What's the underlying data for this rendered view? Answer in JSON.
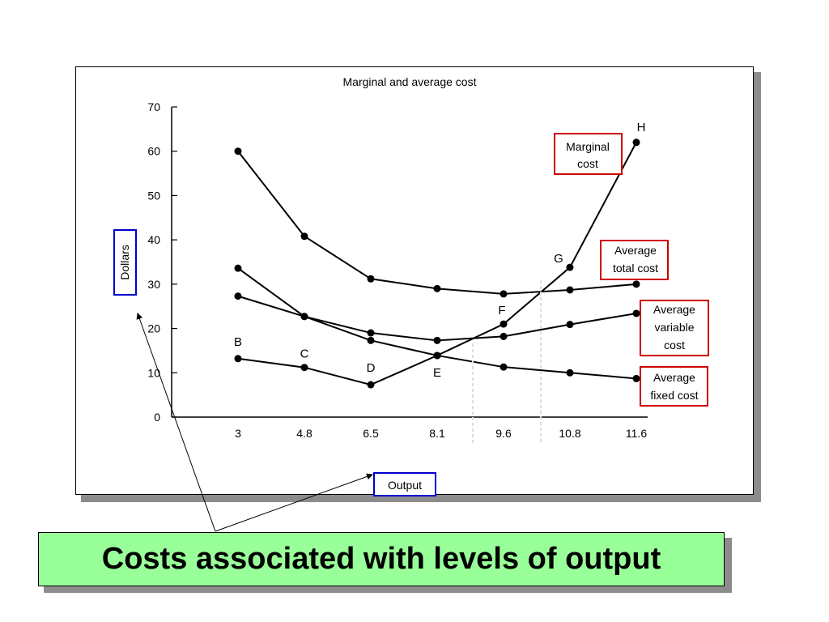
{
  "chart_data": {
    "type": "line",
    "title": "Marginal and average cost",
    "xlabel": "Output",
    "ylabel": "Dollars",
    "categories": [
      "3",
      "4.8",
      "6.5",
      "8.1",
      "9.6",
      "10.8",
      "11.6"
    ],
    "ylim": [
      0,
      70
    ],
    "yticks": [
      "0",
      "10",
      "20",
      "30",
      "40",
      "50",
      "60",
      "70"
    ],
    "grid": false,
    "series": [
      {
        "name": "Marginal cost",
        "values": [
          13.2,
          11.2,
          7.3,
          13.9,
          21.0,
          33.8,
          62.0
        ]
      },
      {
        "name": "Average total cost",
        "values": [
          60.0,
          40.8,
          31.2,
          29.0,
          27.8,
          28.7,
          30.0
        ]
      },
      {
        "name": "Average variable cost",
        "values": [
          27.3,
          22.7,
          19.0,
          17.3,
          18.2,
          20.9,
          23.4
        ]
      },
      {
        "name": "Average fixed cost",
        "values": [
          33.6,
          22.7,
          17.3,
          13.9,
          11.3,
          10.0,
          8.7
        ]
      }
    ],
    "point_labels": [
      "B",
      "C",
      "D",
      "E",
      "F",
      "G",
      "H"
    ],
    "legend_labels": [
      [
        "Marginal",
        "cost"
      ],
      [
        "Average",
        "total cost"
      ],
      [
        "Average",
        "variable",
        "cost"
      ],
      [
        "Average",
        "fixed cost"
      ]
    ],
    "colors": {
      "line": "#000000",
      "legend_box": "#cc0000",
      "axis_label_box": "#0000cc"
    }
  },
  "caption": "Costs associated with levels of output",
  "colors": {
    "caption_bg": "#99ff99",
    "shadow": "#8c8c8c"
  }
}
